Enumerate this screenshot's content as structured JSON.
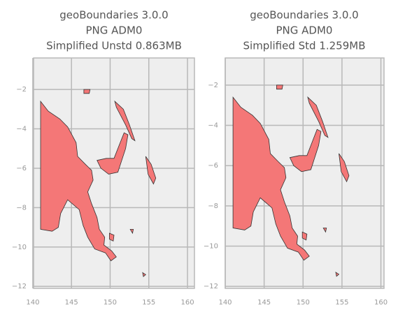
{
  "chart_data": [
    {
      "type": "map",
      "title": [
        "geoBoundaries 3.0.0",
        "PNG ADM0",
        "Simplified Unstd 0.863MB"
      ],
      "color": "#f47777",
      "edgecolor": "#333333",
      "grid": true,
      "xlim": [
        140.1,
        160.9
      ],
      "ylim": [
        -12.1,
        -0.4
      ],
      "xticks": [
        140,
        145,
        150,
        155,
        160
      ],
      "yticks": [
        {
          "value": -2,
          "label": "−2"
        },
        {
          "value": -4,
          "label": "−4"
        },
        {
          "value": -6,
          "label": "−6"
        },
        {
          "value": -8,
          "label": "−8"
        },
        {
          "value": -10,
          "label": "−10"
        },
        {
          "value": -12,
          "label": "−12"
        }
      ]
    },
    {
      "type": "map",
      "title": [
        "geoBoundaries 3.0.0",
        "PNG ADM0",
        "Simplified Std 1.259MB"
      ],
      "color": "#f47777",
      "edgecolor": "#333333",
      "grid": true,
      "xlim": [
        140.0,
        160.4
      ],
      "ylim": [
        -12.1,
        -0.65
      ],
      "xticks": [
        140,
        145,
        150,
        155,
        160
      ],
      "yticks": [
        {
          "value": -2,
          "label": "−2"
        },
        {
          "value": -4,
          "label": "−4"
        },
        {
          "value": -6,
          "label": "−6"
        },
        {
          "value": -8,
          "label": "−8"
        },
        {
          "value": -10,
          "label": "−10"
        },
        {
          "value": -12,
          "label": "−12"
        }
      ]
    }
  ]
}
